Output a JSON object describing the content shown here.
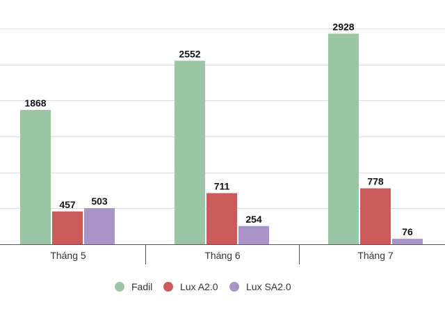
{
  "chart_data": {
    "type": "bar",
    "categories": [
      "Tháng 5",
      "Tháng 6",
      "Tháng 7"
    ],
    "series": [
      {
        "name": "Fadil",
        "values": [
          1868,
          2552,
          2928
        ],
        "color": "#9cc5a6"
      },
      {
        "name": "Lux A2.0",
        "values": [
          457,
          711,
          778
        ],
        "color": "#cc5a5a"
      },
      {
        "name": "Lux SA2.0",
        "values": [
          503,
          254,
          76
        ],
        "color": "#a994c8"
      }
    ],
    "title": "",
    "xlabel": "",
    "ylabel": "",
    "ylim": [
      0,
      3000
    ],
    "grid": true,
    "legend_position": "bottom-center",
    "data_labels": true
  }
}
